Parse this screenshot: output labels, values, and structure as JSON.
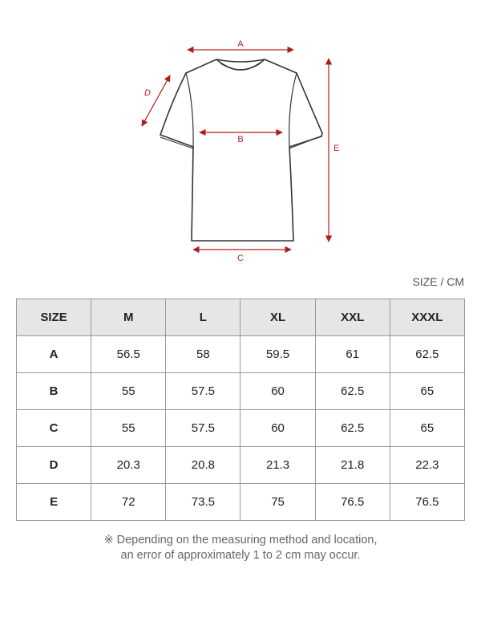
{
  "diagram": {
    "labels": {
      "a": "A",
      "b": "B",
      "c": "C",
      "d": "D",
      "e": "E"
    },
    "accent_color": "#b01c1c",
    "outline_color": "#333333"
  },
  "unit_label": "SIZE / CM",
  "table": {
    "headers": [
      "SIZE",
      "M",
      "L",
      "XL",
      "XXL",
      "XXXL"
    ],
    "rows": [
      [
        "A",
        "56.5",
        "58",
        "59.5",
        "61",
        "62.5"
      ],
      [
        "B",
        "55",
        "57.5",
        "60",
        "62.5",
        "65"
      ],
      [
        "C",
        "55",
        "57.5",
        "60",
        "62.5",
        "65"
      ],
      [
        "D",
        "20.3",
        "20.8",
        "21.3",
        "21.8",
        "22.3"
      ],
      [
        "E",
        "72",
        "73.5",
        "75",
        "76.5",
        "76.5"
      ]
    ]
  },
  "note": {
    "line1": "※ Depending on the measuring method and location,",
    "line2": "an error of approximately 1 to 2 cm may occur."
  }
}
